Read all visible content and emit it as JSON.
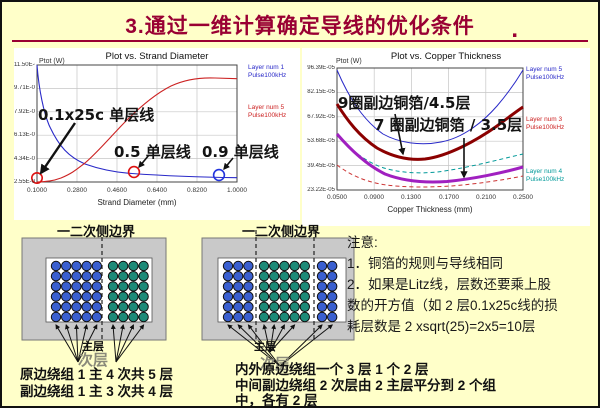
{
  "slide": {
    "title": "3.通过一维计算确定导线的优化条件",
    "period": "."
  },
  "charts": {
    "strand": {
      "title": "Plot vs. Strand Diameter",
      "y_unit": "Ptot (W)",
      "xlabel": "Strand Diameter (mm)",
      "x_ticks": [
        "0.1000",
        "0.2800",
        "0.4600",
        "0.6400",
        "0.8200",
        "1.0000"
      ],
      "y_ticks": [
        "11.50E-05",
        "9.71E-05",
        "7.92E-05",
        "6.13E-05",
        "4.34E-05",
        "2.55E-05"
      ],
      "legend": [
        {
          "line1": "Layer num 1",
          "line2": "Pulse100kHz",
          "color": "#2929c8"
        },
        {
          "line1": "Layer num 5",
          "line2": "Pulse100kHz",
          "color": "#cc2222"
        }
      ],
      "anno1": "0.1x25c 单层线",
      "anno2": "0.5 单层线",
      "anno3": "0.9 单层线"
    },
    "copper": {
      "title": "Plot vs. Copper Thickness",
      "y_unit": "Ptot (W)",
      "xlabel": "Copper Thickness (mm)",
      "x_ticks": [
        "0.0500",
        "0.0900",
        "0.1300",
        "0.1700",
        "0.2100",
        "0.2500"
      ],
      "y_ticks": [
        "96.39E-05",
        "82.15E-05",
        "67.92E-05",
        "53.68E-05",
        "39.45E-05",
        "23.22E-05"
      ],
      "legend": [
        {
          "line1": "Layer num 5",
          "line2": "Pulse100kHz",
          "color": "#2929c8"
        },
        {
          "line1": "Layer num 3",
          "line2": "Pulse100kHz",
          "color": "#cc2222"
        },
        {
          "line1": "Layer num 4",
          "line2": "Pulse100kHz",
          "color": "#009999"
        }
      ],
      "anno1": "9圈副边铜箔/4.5层",
      "anno2": "7 圈副边铜箔 / 3.5层"
    }
  },
  "chart_data": [
    {
      "type": "line",
      "title": "Plot vs. Strand Diameter",
      "xlabel": "Strand Diameter (mm)",
      "ylabel": "Ptot (W)",
      "xlim": [
        0.1,
        1.0
      ],
      "ylim_e05": [
        2.55,
        11.5
      ],
      "x_tick_values": [
        0.1,
        0.28,
        0.46,
        0.64,
        0.82,
        1.0
      ],
      "grid": true,
      "legend_position": "right",
      "series": [
        {
          "name": "Layer num 1 Pulse100kHz",
          "color": "#2929c8",
          "x": [
            0.1,
            0.15,
            0.2,
            0.3,
            0.4,
            0.5,
            0.7,
            0.9,
            1.0
          ],
          "y_e05": [
            11.5,
            7.0,
            5.3,
            4.0,
            3.5,
            3.25,
            3.0,
            2.9,
            2.88
          ]
        },
        {
          "name": "Layer num 5 Pulse100kHz",
          "color": "#cc2222",
          "x": [
            0.1,
            0.2,
            0.3,
            0.4,
            0.5,
            0.6,
            0.7,
            0.8,
            0.9,
            1.0
          ],
          "y_e05": [
            2.55,
            2.75,
            3.8,
            5.5,
            7.2,
            8.8,
            9.9,
            10.4,
            10.5,
            10.45
          ]
        }
      ],
      "point_markers": [
        {
          "x": 0.1,
          "label": "0.1x25c 单层线",
          "circle_color": "#cc2222"
        },
        {
          "x": 0.5,
          "label": "0.5 单层线",
          "circle_color": "#cc2222"
        },
        {
          "x": 0.9,
          "label": "0.9 单层线",
          "circle_color": "#2929c8"
        }
      ]
    },
    {
      "type": "line",
      "title": "Plot vs. Copper Thickness",
      "xlabel": "Copper Thickness (mm)",
      "ylabel": "Ptot (W)",
      "xlim": [
        0.05,
        0.25
      ],
      "ylim_e05": [
        23.22,
        96.39
      ],
      "x_tick_values": [
        0.05,
        0.09,
        0.13,
        0.17,
        0.21,
        0.25
      ],
      "grid": true,
      "legend_position": "right",
      "series": [
        {
          "name": "Layer num 5 Pulse100kHz",
          "color": "#2929c8",
          "style": "thin solid",
          "x": [
            0.05,
            0.09,
            0.13,
            0.17,
            0.21,
            0.25
          ],
          "y_e05": [
            95,
            62,
            50,
            52,
            64,
            95
          ]
        },
        {
          "name": "Layer num 3 Pulse100kHz",
          "color": "#8b0000",
          "style": "thick solid",
          "x": [
            0.05,
            0.09,
            0.13,
            0.17,
            0.21,
            0.25
          ],
          "y_e05": [
            75,
            53,
            41.5,
            44,
            56,
            73
          ]
        },
        {
          "name": "Layer num 4 Pulse100kHz",
          "color": "#009999",
          "style": "thin dashed",
          "x": [
            0.05,
            0.09,
            0.13,
            0.17,
            0.21,
            0.25
          ],
          "y_e05": [
            56,
            41,
            34,
            34.5,
            40,
            45
          ]
        },
        {
          "name": "unlabeled (magenta thick)",
          "color": "#a020c0",
          "style": "thick solid",
          "x": [
            0.05,
            0.09,
            0.13,
            0.17,
            0.21,
            0.25
          ],
          "y_e05": [
            57,
            38,
            29,
            28.5,
            33,
            37
          ]
        },
        {
          "name": "unlabeled (red dashed)",
          "color": "#cc3333",
          "style": "thin dashed",
          "x": [
            0.05,
            0.09,
            0.13,
            0.17,
            0.21,
            0.25
          ],
          "y_e05": [
            38,
            28,
            25,
            25,
            28,
            32
          ]
        }
      ],
      "annotations": [
        {
          "text": "9圈副边铜箔/4.5层",
          "points_to": "dark red curve minimum"
        },
        {
          "text": "7 圈副边铜箔 / 3.5层",
          "points_to": "magenta curve minimum"
        }
      ]
    }
  ],
  "diagrams": {
    "boundary_label": "一二次侧边界",
    "main_layer": "主层",
    "sub_layer": "次层",
    "left": {
      "groups": [
        {
          "cols": 5,
          "rows": 6,
          "color": "#3a5fd0"
        },
        {
          "cols": 4,
          "rows": 6,
          "color": "#1d8a78"
        }
      ]
    },
    "right": {
      "groups": [
        {
          "cols": 3,
          "rows": 6,
          "color": "#3a5fd0"
        },
        {
          "cols": 5,
          "rows": 6,
          "color": "#1d8a78"
        },
        {
          "cols": 2,
          "rows": 6,
          "color": "#3a5fd0"
        }
      ]
    }
  },
  "captions": {
    "left": [
      "原边绕组 1 主 4 次共 5 层",
      "副边绕组 1 主 3 次共 4 层"
    ],
    "right": [
      "内外原边绕组一个 3 层 1 个 2 层",
      "中间副边绕组 2 次层由 2 主层平分到 2 个组",
      "中，各有 2 层"
    ]
  },
  "notes": {
    "heading": "注意:",
    "lines": [
      "1．铜箔的规则与导线相同",
      "2．如果是Litz线，层数还要乘上股",
      "数的开方值（如 2 层0.1x25c线的损",
      "耗层数是 2 xsqrt(25)=2x5=10层"
    ]
  },
  "colors": {
    "background": "#ffffc9",
    "title": "#990033",
    "diagram_gray": "#c9c9c9",
    "blue_series": "#2929c8",
    "red_series": "#cc2222",
    "dark_red_series": "#8b0000",
    "teal_series": "#009999",
    "magenta_series": "#a020c0"
  }
}
